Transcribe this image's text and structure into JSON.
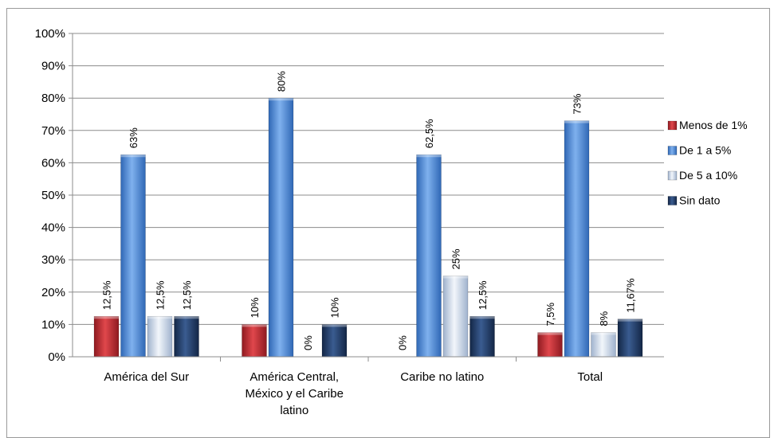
{
  "chart_data": {
    "type": "bar",
    "categories": [
      [
        "América  del  Sur"
      ],
      [
        "América  Central,",
        "México  y  el  Caribe",
        "latino"
      ],
      [
        "Caribe no latino"
      ],
      [
        "Total"
      ]
    ],
    "series": [
      {
        "name": "Menos de 1%",
        "values": [
          12.5,
          10,
          0,
          7.5
        ],
        "labels": [
          "12,5%",
          "10%",
          "",
          "7,5%"
        ],
        "color": "#c0292f"
      },
      {
        "name": "De 1 a 5%",
        "values": [
          62.5,
          80,
          62.5,
          73
        ],
        "labels": [
          "63%",
          "80%",
          "62,5%",
          "73%"
        ],
        "color": "#4f8fde"
      },
      {
        "name": "De 5 a 10%",
        "values": [
          12.5,
          0,
          25,
          7.5
        ],
        "labels": [
          "12,5%",
          "0%",
          "25%",
          "8%"
        ],
        "color": "#c5d3e6"
      },
      {
        "name": "Sin dato",
        "values": [
          12.5,
          10,
          12.5,
          11.67
        ],
        "labels": [
          "12,5%",
          "10%",
          "12,5%",
          "11,67%"
        ],
        "color": "#1f3a66"
      }
    ],
    "zero_labels": [
      {
        "category": 2,
        "series": 0,
        "text": "0%"
      }
    ],
    "yticks": [
      "0%",
      "10%",
      "20%",
      "30%",
      "40%",
      "50%",
      "60%",
      "70%",
      "80%",
      "90%",
      "100%"
    ],
    "ylim": [
      0,
      100
    ],
    "grid": true,
    "legend_position": "right"
  }
}
